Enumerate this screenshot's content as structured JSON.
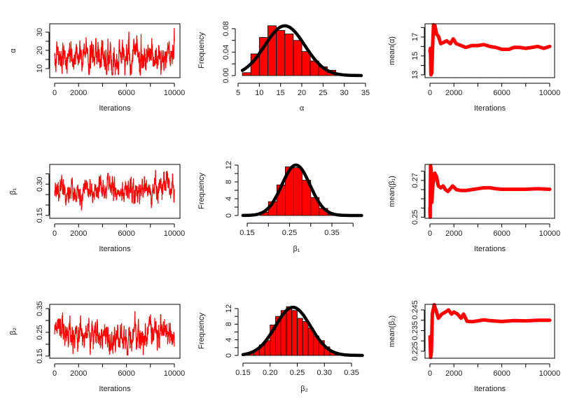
{
  "colors": {
    "series": "#ff0000",
    "curve": "#000000",
    "axis": "#000000"
  },
  "chart_data": [
    {
      "type": "line",
      "variant": "trace",
      "xlabel": "Iterations",
      "ylabel": "α",
      "xlim": [
        0,
        10000
      ],
      "ylim": [
        5,
        34.6
      ],
      "xticks": [
        0,
        2000,
        4000,
        6000,
        8000,
        10000
      ],
      "xtick_labels": [
        "0",
        "2000",
        "",
        "6000",
        "",
        "10000"
      ],
      "yticks": [
        10,
        15,
        20,
        25,
        30
      ],
      "ytick_labels": [
        "10",
        "",
        "20",
        "",
        "30"
      ],
      "series": {
        "name": "α",
        "mean": 16,
        "sd": 4.7,
        "min": 6.5,
        "max": 33.5,
        "n_iter": 10000
      }
    },
    {
      "type": "bar",
      "variant": "histogram",
      "xlabel": "α",
      "ylabel": "Frequency",
      "xlim": [
        5,
        35
      ],
      "ylim": [
        0,
        0.08
      ],
      "xticks": [
        5,
        10,
        15,
        20,
        25,
        30,
        35
      ],
      "xtick_labels": [
        "5",
        "10",
        "15",
        "20",
        "25",
        "30",
        "35"
      ],
      "yticks": [
        0,
        0.02,
        0.04,
        0.06,
        0.08
      ],
      "ytick_labels": [
        "0.00",
        "",
        "0.04",
        "",
        "0.08"
      ],
      "bins": {
        "start": 6,
        "width": 2,
        "values": [
          0.005,
          0.037,
          0.065,
          0.085,
          0.077,
          0.071,
          0.06,
          0.041,
          0.025,
          0.015,
          0.009,
          0.001
        ]
      },
      "normal_curve": {
        "mean": 16,
        "sd": 4.7,
        "from": 6,
        "to": 34
      }
    },
    {
      "type": "line",
      "variant": "running_mean",
      "xlabel": "Iterations",
      "ylabel": "mean(α)",
      "xlim": [
        0,
        10000
      ],
      "ylim": [
        12.7,
        18.4
      ],
      "xticks": [
        0,
        2000,
        4000,
        6000,
        8000,
        10000
      ],
      "xtick_labels": [
        "0",
        "2000",
        "",
        "6000",
        "",
        "10000"
      ],
      "yticks": [
        13,
        14,
        15,
        16,
        17,
        18
      ],
      "ytick_labels": [
        "13",
        "",
        "15",
        "",
        "17",
        ""
      ],
      "points": [
        [
          0,
          15.5
        ],
        [
          40,
          15.8
        ],
        [
          80,
          13
        ],
        [
          150,
          13.2
        ],
        [
          220,
          16
        ],
        [
          300,
          18.3
        ],
        [
          420,
          18.2
        ],
        [
          550,
          17.3
        ],
        [
          700,
          17.1
        ],
        [
          900,
          16.3
        ],
        [
          1100,
          16.4
        ],
        [
          1400,
          16.6
        ],
        [
          1700,
          16.3
        ],
        [
          1950,
          16.8
        ],
        [
          2200,
          16.3
        ],
        [
          2600,
          16.1
        ],
        [
          3000,
          15.9
        ],
        [
          3500,
          16.1
        ],
        [
          4000,
          16.1
        ],
        [
          4500,
          16.2
        ],
        [
          5000,
          16.0
        ],
        [
          5500,
          15.9
        ],
        [
          6000,
          15.7
        ],
        [
          6600,
          15.7
        ],
        [
          7000,
          15.9
        ],
        [
          7500,
          15.9
        ],
        [
          8000,
          15.8
        ],
        [
          8500,
          15.9
        ],
        [
          9000,
          16.0
        ],
        [
          9500,
          15.8
        ],
        [
          10000,
          16.0
        ]
      ]
    },
    {
      "type": "line",
      "variant": "trace",
      "xlabel": "Iterations",
      "ylabel": "β₁",
      "xlim": [
        0,
        10000
      ],
      "ylim": [
        0.136,
        0.395
      ],
      "xticks": [
        0,
        2000,
        4000,
        6000,
        8000,
        10000
      ],
      "xtick_labels": [
        "0",
        "2000",
        "",
        "6000",
        "",
        "10000"
      ],
      "yticks": [
        0.15,
        0.2,
        0.25,
        0.3,
        0.35
      ],
      "ytick_labels": [
        "0.15",
        "",
        "",
        "0.30",
        ""
      ],
      "series": {
        "name": "β₁",
        "mean": 0.265,
        "sd": 0.033,
        "min": 0.15,
        "max": 0.37,
        "n_iter": 10000
      }
    },
    {
      "type": "bar",
      "variant": "histogram",
      "xlabel": "β₁",
      "ylabel": "Frequency",
      "xlim": [
        0.15,
        0.35
      ],
      "ylim": [
        0,
        12
      ],
      "xticks": [
        0.15,
        0.2,
        0.25,
        0.3,
        0.35,
        0.4
      ],
      "xtick_labels": [
        "0.15",
        "",
        "0.25",
        "",
        "0.35",
        ""
      ],
      "yticks": [
        0,
        2,
        4,
        6,
        8,
        10,
        12
      ],
      "ytick_labels": [
        "0",
        "",
        "4",
        "",
        "8",
        "",
        "12"
      ],
      "bins": {
        "start": 0.18,
        "width": 0.02,
        "values": [
          0.8,
          3.3,
          7.3,
          11.6,
          11.4,
          8.4,
          4.3,
          1.7,
          0.3
        ]
      },
      "normal_curve": {
        "mean": 0.265,
        "sd": 0.0332,
        "from": 0.14,
        "to": 0.42
      }
    },
    {
      "type": "line",
      "variant": "running_mean",
      "xlabel": "Iterations",
      "ylabel": "mean(β₁)",
      "xlim": [
        0,
        10000
      ],
      "ylim": [
        0.2494,
        0.2787
      ],
      "xticks": [
        0,
        2000,
        4000,
        6000,
        8000,
        10000
      ],
      "xtick_labels": [
        "0",
        "2000",
        "",
        "6000",
        "",
        "10000"
      ],
      "yticks": [
        0.25,
        0.255,
        0.26,
        0.265,
        0.27,
        0.275
      ],
      "ytick_labels": [
        "0.25",
        "",
        "",
        "",
        "0.27",
        ""
      ],
      "points": [
        [
          0,
          0.255
        ],
        [
          20,
          0.25
        ],
        [
          50,
          0.278
        ],
        [
          100,
          0.276
        ],
        [
          150,
          0.258
        ],
        [
          250,
          0.268
        ],
        [
          400,
          0.274
        ],
        [
          550,
          0.272
        ],
        [
          700,
          0.267
        ],
        [
          900,
          0.266
        ],
        [
          1100,
          0.267
        ],
        [
          1300,
          0.265
        ],
        [
          1500,
          0.264
        ],
        [
          1900,
          0.267
        ],
        [
          2200,
          0.265
        ],
        [
          2600,
          0.2645
        ],
        [
          3000,
          0.2645
        ],
        [
          3500,
          0.265
        ],
        [
          4000,
          0.2655
        ],
        [
          4500,
          0.266
        ],
        [
          5000,
          0.266
        ],
        [
          5500,
          0.2655
        ],
        [
          6000,
          0.2652
        ],
        [
          7000,
          0.2652
        ],
        [
          8000,
          0.2652
        ],
        [
          9000,
          0.2655
        ],
        [
          10000,
          0.2652
        ]
      ]
    },
    {
      "type": "line",
      "variant": "trace",
      "xlabel": "Iterations",
      "ylabel": "β₂",
      "xlim": [
        0,
        10000
      ],
      "ylim": [
        0.141,
        0.368
      ],
      "xticks": [
        0,
        2000,
        4000,
        6000,
        8000,
        10000
      ],
      "xtick_labels": [
        "0",
        "2000",
        "",
        "6000",
        "",
        "10000"
      ],
      "yticks": [
        0.15,
        0.2,
        0.25,
        0.3,
        0.35
      ],
      "ytick_labels": [
        "0.15",
        "",
        "0.25",
        "",
        "0.35"
      ],
      "series": {
        "name": "β₂",
        "mean": 0.242,
        "sd": 0.032,
        "min": 0.155,
        "max": 0.36,
        "n_iter": 10000
      }
    },
    {
      "type": "bar",
      "variant": "histogram",
      "xlabel": "β₂",
      "ylabel": "Frequency",
      "xlim": [
        0.15,
        0.35
      ],
      "ylim": [
        0,
        12
      ],
      "xticks": [
        0.15,
        0.2,
        0.25,
        0.3,
        0.35
      ],
      "xtick_labels": [
        "0.15",
        "0.20",
        "0.25",
        "0.30",
        "0.35"
      ],
      "yticks": [
        0,
        2,
        4,
        6,
        8,
        10,
        12
      ],
      "ytick_labels": [
        "0",
        "",
        "4",
        "",
        "8",
        "",
        "12"
      ],
      "bins": {
        "start": 0.15,
        "width": 0.01,
        "values": [
          0.3,
          0.8,
          1.5,
          2.7,
          3.8,
          7.8,
          10,
          11.5,
          12.5,
          11.5,
          9.5,
          8.7,
          7,
          5,
          3.8,
          2.2,
          1,
          0.3
        ]
      },
      "normal_curve": {
        "mean": 0.242,
        "sd": 0.0324,
        "from": 0.15,
        "to": 0.37
      }
    },
    {
      "type": "line",
      "variant": "running_mean",
      "xlabel": "Iterations",
      "ylabel": "mean(β₂)",
      "xlim": [
        0,
        10000
      ],
      "ylim": [
        0.2216,
        0.2477
      ],
      "xticks": [
        0,
        2000,
        4000,
        6000,
        8000,
        10000
      ],
      "xtick_labels": [
        "0",
        "2000",
        "",
        "6000",
        "",
        "10000"
      ],
      "yticks": [
        0.225,
        0.23,
        0.235,
        0.24,
        0.245
      ],
      "ytick_labels": [
        "0.225",
        "",
        "0.235",
        "",
        "0.245"
      ],
      "points": [
        [
          0,
          0.232
        ],
        [
          30,
          0.228
        ],
        [
          60,
          0.222
        ],
        [
          120,
          0.225
        ],
        [
          200,
          0.243
        ],
        [
          350,
          0.2475
        ],
        [
          500,
          0.245
        ],
        [
          700,
          0.241
        ],
        [
          1000,
          0.243
        ],
        [
          1300,
          0.244
        ],
        [
          1550,
          0.245
        ],
        [
          1800,
          0.243
        ],
        [
          2000,
          0.244
        ],
        [
          2300,
          0.243
        ],
        [
          2600,
          0.241
        ],
        [
          2800,
          0.243
        ],
        [
          3100,
          0.2395
        ],
        [
          3500,
          0.2393
        ],
        [
          4000,
          0.2397
        ],
        [
          4500,
          0.2402
        ],
        [
          5000,
          0.2398
        ],
        [
          6000,
          0.2394
        ],
        [
          7000,
          0.2398
        ],
        [
          8000,
          0.2397
        ],
        [
          9000,
          0.24
        ],
        [
          10000,
          0.24
        ]
      ]
    }
  ]
}
